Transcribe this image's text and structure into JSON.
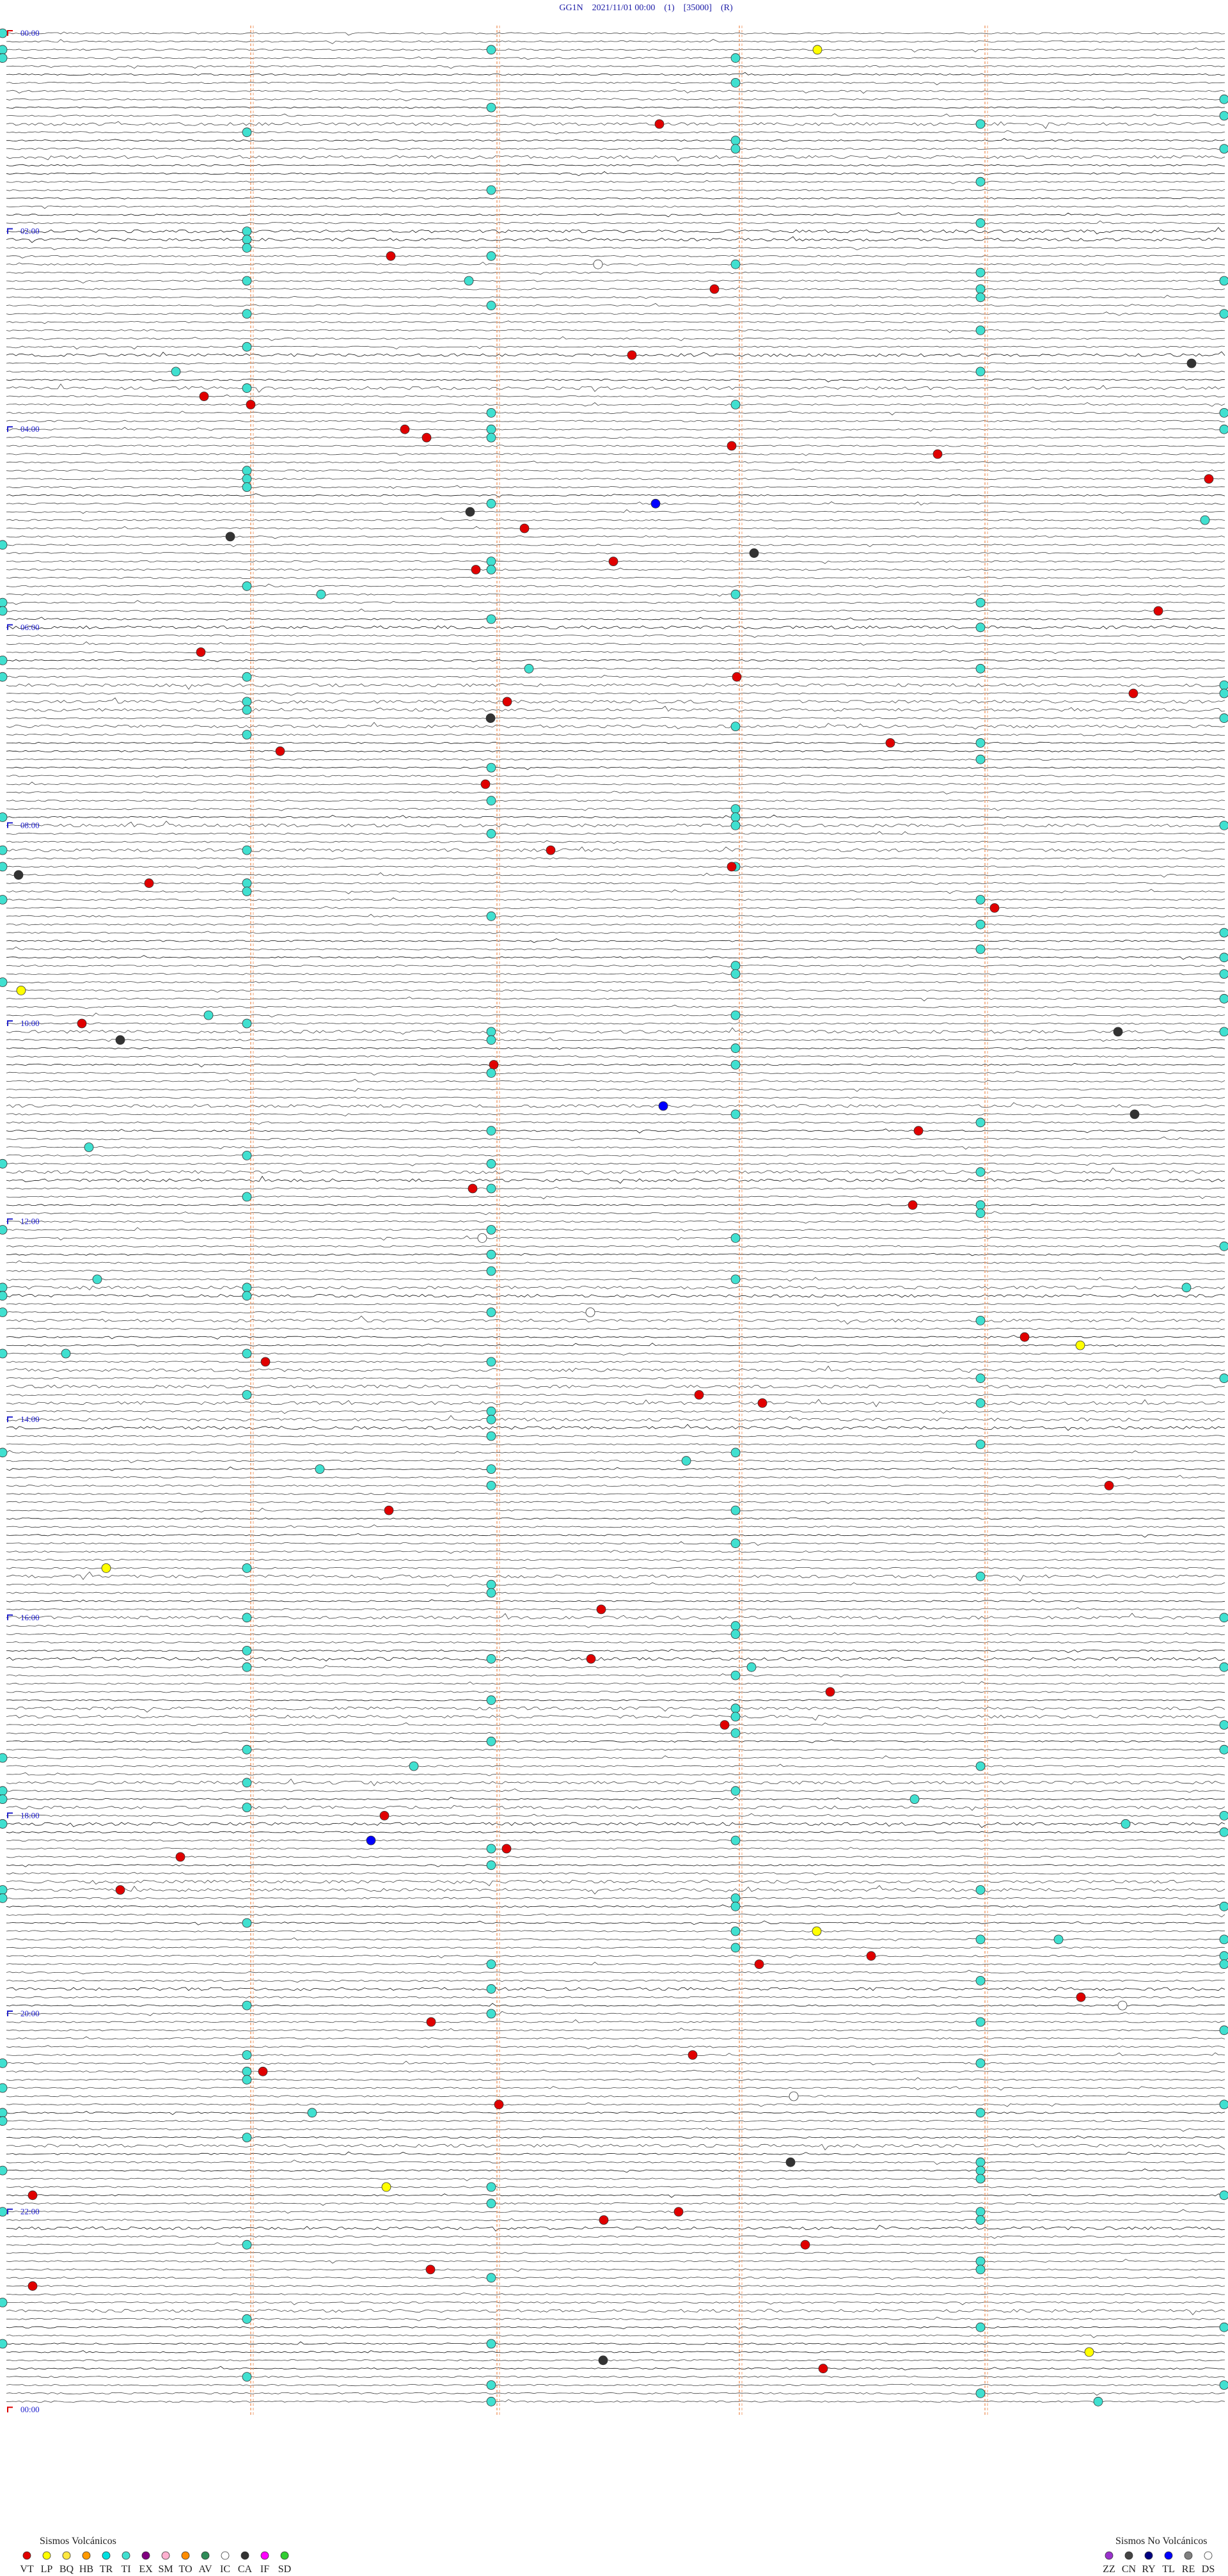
{
  "header": {
    "title": "GG1N    2021/11/01 00:00    (1)    [35000]    (R)"
  },
  "time_labels": [
    "00:00",
    "02:00",
    "04:00",
    "06:00",
    "08:00",
    "10:00",
    "12:00",
    "14:00",
    "16:00",
    "18:00",
    "20:00",
    "22:00",
    "00:00"
  ],
  "legend": {
    "volcanic": {
      "title": "Sismos Volcánicos",
      "items": [
        {
          "label": "VT",
          "color": "#e00000"
        },
        {
          "label": "LP",
          "color": "#ffff00"
        },
        {
          "label": "BQ",
          "color": "#ffe840"
        },
        {
          "label": "HB",
          "color": "#ff9900"
        },
        {
          "label": "TR",
          "color": "#00e0e0"
        },
        {
          "label": "TI",
          "color": "#40e0d0"
        },
        {
          "label": "EX",
          "color": "#800080"
        },
        {
          "label": "SM",
          "color": "#ffb0d0"
        },
        {
          "label": "TO",
          "color": "#ff8c00"
        },
        {
          "label": "AV",
          "color": "#2e8b57"
        },
        {
          "label": "IC",
          "color": "#ffffff"
        },
        {
          "label": "CA",
          "color": "#333333"
        },
        {
          "label": "IF",
          "color": "#ff00ff"
        },
        {
          "label": "SD",
          "color": "#32cd32"
        }
      ]
    },
    "non_volcanic": {
      "title": "Sismos No Volcánicos",
      "items": [
        {
          "label": "ZZ",
          "color": "#9932cc"
        },
        {
          "label": "CN",
          "color": "#444444"
        },
        {
          "label": "RY",
          "color": "#000080"
        },
        {
          "label": "TL",
          "color": "#0000ff"
        },
        {
          "label": "RE",
          "color": "#808080"
        },
        {
          "label": "DS",
          "color": "#ffffff"
        }
      ]
    }
  }
}
